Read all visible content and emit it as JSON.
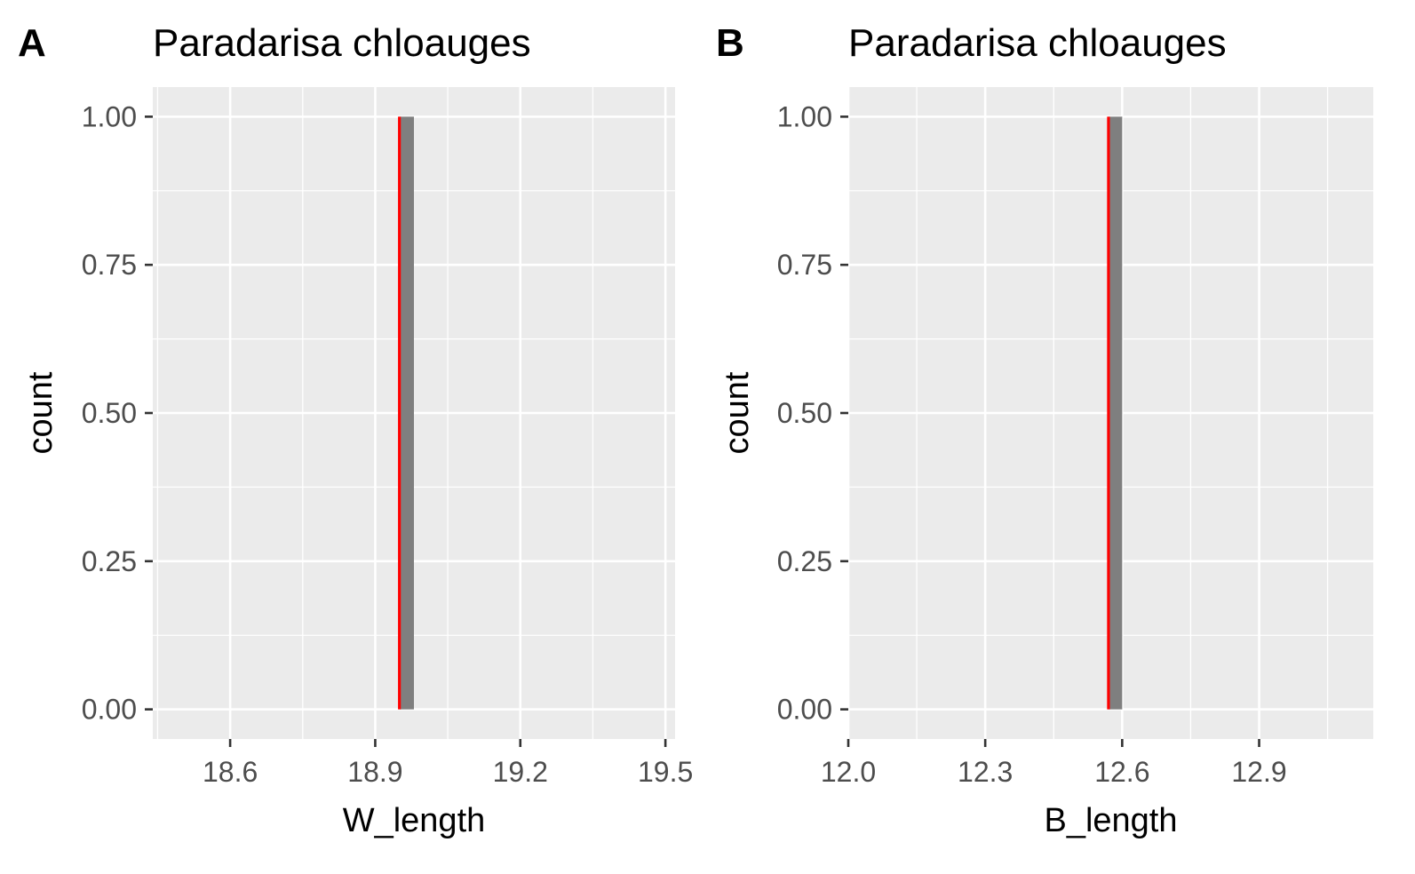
{
  "chart_data": [
    {
      "type": "bar",
      "panel": "A",
      "title": "Paradarisa chloauges",
      "xlabel": "W_length",
      "ylabel": "count",
      "xlim": [
        18.44,
        19.52
      ],
      "ylim": [
        -0.05,
        1.05
      ],
      "xticks": [
        18.6,
        18.9,
        19.2,
        19.5
      ],
      "xtick_labels": [
        "18.6",
        "18.9",
        "19.2",
        "19.5"
      ],
      "yticks": [
        0,
        0.25,
        0.5,
        0.75,
        1
      ],
      "ytick_labels": [
        "0.00",
        "0.25",
        "0.50",
        "0.75",
        "1.00"
      ],
      "bars": [
        {
          "x_min": 18.95,
          "x_max": 18.98,
          "count": 1
        }
      ],
      "vline": {
        "x": 18.95,
        "color": "#ff0000"
      },
      "bar_color": "#7f7f7f",
      "grid": true
    },
    {
      "type": "bar",
      "panel": "B",
      "title": "Paradarisa chloauges",
      "xlabel": "B_length",
      "ylabel": "count",
      "xlim": [
        12.0,
        13.15
      ],
      "ylim": [
        -0.05,
        1.05
      ],
      "xticks": [
        12.0,
        12.3,
        12.6,
        12.9
      ],
      "xtick_labels": [
        "12.0",
        "12.3",
        "12.6",
        "12.9"
      ],
      "yticks": [
        0,
        0.25,
        0.5,
        0.75,
        1
      ],
      "ytick_labels": [
        "0.00",
        "0.25",
        "0.50",
        "0.75",
        "1.00"
      ],
      "bars": [
        {
          "x_min": 12.57,
          "x_max": 12.6,
          "count": 1
        }
      ],
      "vline": {
        "x": 12.57,
        "color": "#ff0000"
      },
      "bar_color": "#7f7f7f",
      "grid": true
    }
  ]
}
